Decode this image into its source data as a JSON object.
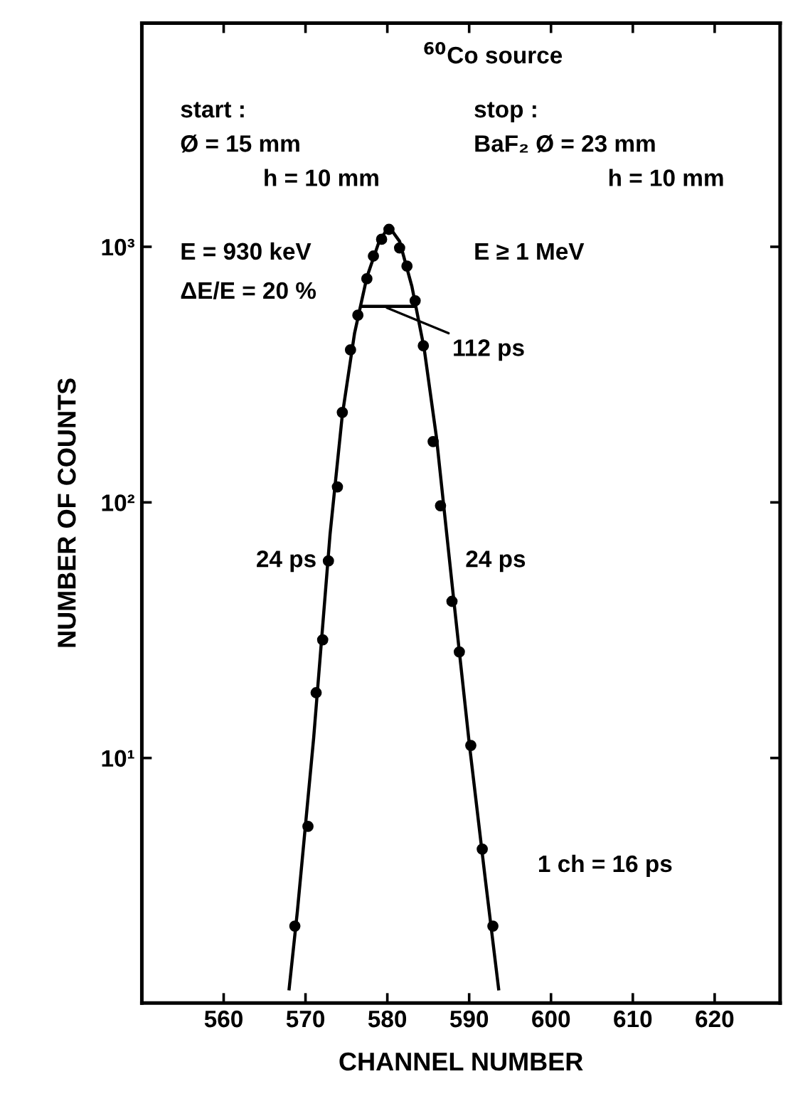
{
  "chart_data": {
    "type": "scatter",
    "xlabel": "CHANNEL NUMBER",
    "ylabel": "NUMBER OF COUNTS",
    "log": "y",
    "xlim": [
      550,
      628
    ],
    "xticks": [
      560,
      570,
      580,
      590,
      600,
      610,
      620
    ],
    "ylim": [
      1.1,
      7500
    ],
    "yticks": [
      {
        "value": 10,
        "label": "10¹"
      },
      {
        "value": 100,
        "label": "10²"
      },
      {
        "value": 1000,
        "label": "10³"
      }
    ],
    "grid": false,
    "series": [
      {
        "color": "#000000",
        "marker": "circle",
        "x": [
          568.7,
          570.3,
          571.3,
          572.1,
          572.8,
          573.9,
          574.5,
          575.5,
          576.4,
          577.5,
          578.3,
          579.3,
          580.2,
          581.5,
          582.4,
          583.4,
          584.4,
          585.6,
          586.5,
          587.9,
          588.8,
          590.2,
          591.6,
          592.9
        ],
        "values": [
          2.2,
          5.4,
          18,
          29,
          59,
          115,
          225,
          395,
          540,
          750,
          920,
          1070,
          1170,
          990,
          840,
          615,
          410,
          173,
          97,
          41,
          26,
          11.2,
          4.4,
          2.2
        ]
      },
      {
        "type": "line",
        "color": "#000000",
        "marker": "none",
        "line_style": "solid",
        "x": [
          568,
          569,
          571,
          573,
          574.5,
          576,
          577.5,
          579,
          580.2,
          581.5,
          583,
          584.5,
          586,
          588,
          590,
          592,
          593.6
        ],
        "values": [
          1.25,
          2.5,
          12,
          75,
          220,
          460,
          760,
          1050,
          1200,
          1050,
          700,
          400,
          180,
          45,
          11.5,
          3.3,
          1.25
        ]
      },
      {
        "type": "line",
        "color": "#000000",
        "marker": "none",
        "line_style": "solid",
        "x": [
          576.9,
          583.3
        ],
        "values": [
          585,
          585
        ]
      }
    ],
    "annotations": [
      "$^{60}$Co source",
      "start :",
      "Ø = 15 mm",
      "h = 10 mm",
      "E = 930 keV",
      "ΔE/E = 20 %",
      "stop :",
      "BaF₂ Ø = 23 mm",
      "h = 10 mm",
      "E ≥ 1 MeV",
      "1 ch = 16 ps",
      {
        "text": "112 ps",
        "x": 579.5,
        "y": 585
      },
      {
        "text": "24 ps",
        "x": 572.8,
        "y": 59
      },
      {
        "text": "24 ps",
        "x": 587.6,
        "y": 59
      }
    ]
  }
}
